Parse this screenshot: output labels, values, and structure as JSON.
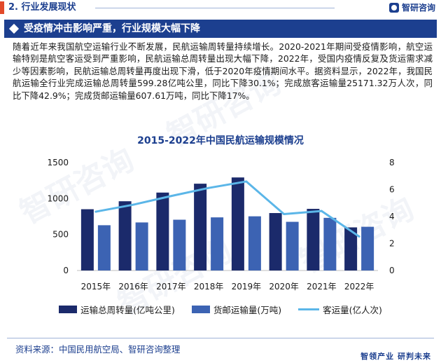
{
  "header": {
    "section_label": "2. 行业发展现状",
    "brand_name": "智研咨询"
  },
  "headline": "受疫情冲击影响严重，行业规模大幅下降",
  "paragraph": "随着近年来我国航空运输行业不断发展，民航运输周转量持续增长。2020-2021年期间受疫情影响，航空运输特别是航空客运受到严重影响，民航运输总周转量出现大幅下降，2022年，受国内疫情反复及货运需求减少等因素影响，民航运输总周转量再度出现下滑，低于2020年疫情期间水平。据资料显示，2022年，我国民航运输全行业完成运输总周转量599.28亿吨公里，同比下降30.1%；完成旅客运输量25171.32万人次，同比下降42.9%；完成货邮运输量607.61万吨，同比下降17%。",
  "watermark": "智研咨询",
  "colors": {
    "series1": "#1b2a6b",
    "series2": "#3c63b3",
    "series3": "#5bb6e8",
    "accent": "#1c3f8f",
    "marker": "#e24a2a"
  },
  "chart_data": {
    "type": "bar",
    "title": "2015-2022年中国民航运输规模情况",
    "categories": [
      "2015年",
      "2016年",
      "2017年",
      "2018年",
      "2019年",
      "2020年",
      "2021年",
      "2022年"
    ],
    "series": [
      {
        "name": "运输总周转量(亿吨公里)",
        "type": "bar",
        "axis": "left",
        "values": [
          851.65,
          962.51,
          1083.08,
          1206.53,
          1293.25,
          798.51,
          856.75,
          599.28
        ]
      },
      {
        "name": "货邮运输量(万吨)",
        "type": "bar",
        "axis": "left",
        "values": [
          629.3,
          668,
          705.9,
          738.5,
          753.2,
          676.6,
          731.8,
          607.61
        ]
      },
      {
        "name": "客运量(亿人次)",
        "type": "line",
        "axis": "right",
        "values": [
          4.36,
          4.88,
          5.52,
          6.12,
          6.6,
          4.18,
          4.41,
          2.52
        ]
      }
    ],
    "y_left": {
      "min": 0,
      "max": 1500,
      "ticks": [
        "0",
        "500",
        "1000",
        "1500"
      ]
    },
    "y_right": {
      "min": 0,
      "max": 8,
      "ticks": [
        "0",
        "2",
        "4",
        "6",
        "8"
      ]
    },
    "grid": false,
    "legend_position": "bottom"
  },
  "footer": {
    "source": "资料来源：中国民用航空局、智研咨询整理",
    "brand": "智领产业 研判未来"
  }
}
